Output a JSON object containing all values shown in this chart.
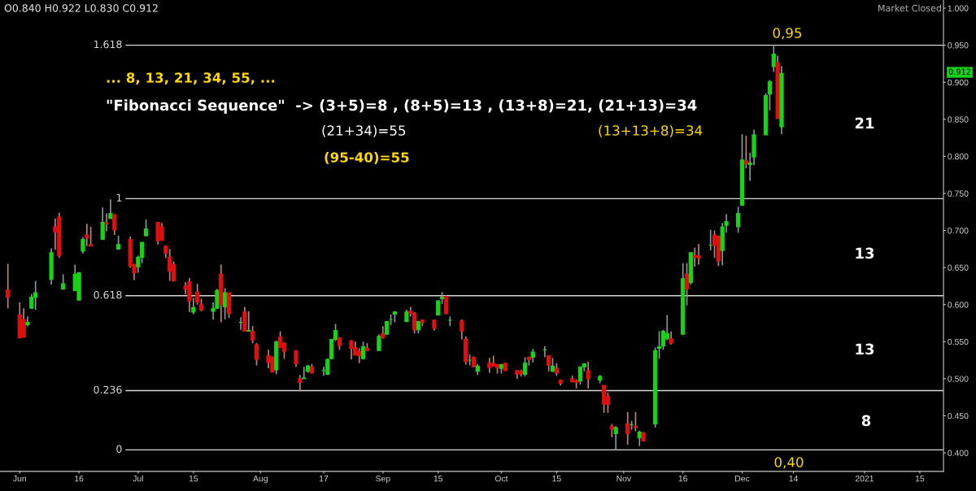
{
  "chart_data": {
    "type": "candlestick",
    "x": [
      "2020-05-29",
      "2020-06-01",
      "2020-06-02",
      "2020-06-03",
      "2020-06-04",
      "2020-06-05",
      "2020-06-09",
      "2020-06-10",
      "2020-06-11",
      "2020-06-12",
      "2020-06-15",
      "2020-06-16",
      "2020-06-17",
      "2020-06-18",
      "2020-06-19",
      "2020-06-22",
      "2020-06-23",
      "2020-06-24",
      "2020-06-25",
      "2020-06-26",
      "2020-06-29",
      "2020-06-30",
      "2020-07-01",
      "2020-07-02",
      "2020-07-03",
      "2020-07-06",
      "2020-07-07",
      "2020-07-08",
      "2020-07-09",
      "2020-07-10",
      "2020-07-13",
      "2020-07-14",
      "2020-07-15",
      "2020-07-16",
      "2020-07-17",
      "2020-07-20",
      "2020-07-21",
      "2020-07-22",
      "2020-07-23",
      "2020-07-24",
      "2020-07-27",
      "2020-07-28",
      "2020-07-29",
      "2020-07-30",
      "2020-07-31",
      "2020-08-03",
      "2020-08-04",
      "2020-08-05",
      "2020-08-06",
      "2020-08-07",
      "2020-08-10",
      "2020-08-11",
      "2020-08-12",
      "2020-08-13",
      "2020-08-14",
      "2020-08-17",
      "2020-08-18",
      "2020-08-19",
      "2020-08-20",
      "2020-08-21",
      "2020-08-24",
      "2020-08-25",
      "2020-08-26",
      "2020-08-27",
      "2020-08-28",
      "2020-08-31",
      "2020-09-01",
      "2020-09-02",
      "2020-09-03",
      "2020-09-04",
      "2020-09-07",
      "2020-09-08",
      "2020-09-09",
      "2020-09-10",
      "2020-09-11",
      "2020-09-14",
      "2020-09-15",
      "2020-09-16",
      "2020-09-17",
      "2020-09-18",
      "2020-09-21",
      "2020-09-22",
      "2020-09-23",
      "2020-09-24",
      "2020-09-25",
      "2020-09-28",
      "2020-09-29",
      "2020-09-30",
      "2020-10-01",
      "2020-10-02",
      "2020-10-05",
      "2020-10-06",
      "2020-10-07",
      "2020-10-08",
      "2020-10-09",
      "2020-10-12",
      "2020-10-13",
      "2020-10-14",
      "2020-10-15",
      "2020-10-16",
      "2020-10-19",
      "2020-10-20",
      "2020-10-21",
      "2020-10-22",
      "2020-10-23",
      "2020-10-26",
      "2020-10-27",
      "2020-10-28",
      "2020-10-29",
      "2020-10-30",
      "2020-11-02",
      "2020-11-03",
      "2020-11-04",
      "2020-11-05",
      "2020-11-06",
      "2020-11-09",
      "2020-11-10",
      "2020-11-11",
      "2020-11-12",
      "2020-11-13",
      "2020-11-16",
      "2020-11-17",
      "2020-11-18",
      "2020-11-19",
      "2020-11-20",
      "2020-11-23",
      "2020-11-24",
      "2020-11-25",
      "2020-11-26",
      "2020-11-27",
      "2020-11-30",
      "2020-12-01",
      "2020-12-02",
      "2020-12-03",
      "2020-12-04",
      "2020-12-07",
      "2020-12-08",
      "2020-12-09",
      "2020-12-10",
      "2020-12-11"
    ],
    "ohlc": [
      [
        0.62,
        0.655,
        0.595,
        0.61
      ],
      [
        0.586,
        0.603,
        0.555,
        0.555
      ],
      [
        0.58,
        0.595,
        0.556,
        0.556
      ],
      [
        0.573,
        0.584,
        0.571,
        0.576
      ],
      [
        0.595,
        0.614,
        0.595,
        0.61
      ],
      [
        0.61,
        0.632,
        0.593,
        0.616
      ],
      [
        0.634,
        0.676,
        0.627,
        0.67
      ],
      [
        0.705,
        0.716,
        0.674,
        0.698
      ],
      [
        0.718,
        0.724,
        0.663,
        0.666
      ],
      [
        0.621,
        0.641,
        0.62,
        0.628
      ],
      [
        0.619,
        0.654,
        0.619,
        0.641
      ],
      [
        0.606,
        0.643,
        0.606,
        0.643
      ],
      [
        0.672,
        0.691,
        0.669,
        0.688
      ],
      [
        0.694,
        0.709,
        0.679,
        0.69
      ],
      [
        0.681,
        0.705,
        0.679,
        0.679
      ],
      [
        0.688,
        0.731,
        0.688,
        0.711
      ],
      [
        0.71,
        0.723,
        0.699,
        0.709
      ],
      [
        0.716,
        0.742,
        0.716,
        0.723
      ],
      [
        0.721,
        0.722,
        0.694,
        0.701
      ],
      [
        0.675,
        0.693,
        0.675,
        0.681
      ],
      [
        0.688,
        0.692,
        0.65,
        0.652
      ],
      [
        0.654,
        0.655,
        0.633,
        0.643
      ],
      [
        0.651,
        0.666,
        0.643,
        0.664
      ],
      [
        0.664,
        0.684,
        0.656,
        0.684
      ],
      [
        0.693,
        0.715,
        0.692,
        0.702
      ],
      [
        0.711,
        0.711,
        0.681,
        0.686
      ],
      [
        0.705,
        0.71,
        0.687,
        0.687
      ],
      [
        0.679,
        0.68,
        0.663,
        0.669
      ],
      [
        0.664,
        0.675,
        0.632,
        0.645
      ],
      [
        0.654,
        0.658,
        0.631,
        0.632
      ],
      [
        0.625,
        0.63,
        0.614,
        0.621
      ],
      [
        0.631,
        0.636,
        0.59,
        0.605
      ],
      [
        0.59,
        0.609,
        0.587,
        0.596
      ],
      [
        0.617,
        0.628,
        0.6,
        0.603
      ],
      [
        0.6,
        0.608,
        0.591,
        0.593
      ],
      [
        0.591,
        0.603,
        0.58,
        0.595
      ],
      [
        0.595,
        0.621,
        0.595,
        0.619
      ],
      [
        0.641,
        0.654,
        0.576,
        0.6
      ],
      [
        0.597,
        0.622,
        0.58,
        0.616
      ],
      [
        0.616,
        0.616,
        0.582,
        0.588
      ],
      [
        0.576,
        0.583,
        0.566,
        0.576
      ],
      [
        0.59,
        0.597,
        0.564,
        0.564
      ],
      [
        0.564,
        0.591,
        0.564,
        0.565
      ],
      [
        0.564,
        0.571,
        0.548,
        0.552
      ],
      [
        0.546,
        0.548,
        0.518,
        0.526
      ],
      [
        0.531,
        0.539,
        0.514,
        0.522
      ],
      [
        0.529,
        0.53,
        0.509,
        0.509
      ],
      [
        0.512,
        0.551,
        0.506,
        0.55
      ],
      [
        0.556,
        0.564,
        0.542,
        0.542
      ],
      [
        0.548,
        0.549,
        0.527,
        0.537
      ],
      [
        0.538,
        0.538,
        0.516,
        0.52
      ],
      [
        0.5,
        0.505,
        0.483,
        0.495
      ],
      [
        0.5,
        0.516,
        0.5,
        0.501
      ],
      [
        0.51,
        0.519,
        0.508,
        0.517
      ],
      [
        0.516,
        0.52,
        0.507,
        0.508
      ],
      [
        0.511,
        0.516,
        0.504,
        0.511
      ],
      [
        0.506,
        0.527,
        0.505,
        0.526
      ],
      [
        0.527,
        0.553,
        0.526,
        0.553
      ],
      [
        0.553,
        0.574,
        0.551,
        0.565
      ],
      [
        0.555,
        0.556,
        0.539,
        0.545
      ],
      [
        0.551,
        0.552,
        0.526,
        0.541
      ],
      [
        0.542,
        0.55,
        0.532,
        0.532
      ],
      [
        0.537,
        0.541,
        0.521,
        0.531
      ],
      [
        0.527,
        0.55,
        0.526,
        0.543
      ],
      [
        0.541,
        0.548,
        0.537,
        0.538
      ],
      [
        0.538,
        0.56,
        0.538,
        0.557
      ],
      [
        0.561,
        0.571,
        0.554,
        0.555
      ],
      [
        0.56,
        0.577,
        0.56,
        0.577
      ],
      [
        0.58,
        0.587,
        0.572,
        0.58
      ],
      [
        0.587,
        0.591,
        0.576,
        0.59
      ],
      [
        0.577,
        0.593,
        0.577,
        0.59
      ],
      [
        0.591,
        0.597,
        0.584,
        0.588
      ],
      [
        0.588,
        0.59,
        0.561,
        0.566
      ],
      [
        0.566,
        0.578,
        0.561,
        0.577
      ],
      [
        0.579,
        0.58,
        0.571,
        0.576
      ],
      [
        0.579,
        0.58,
        0.565,
        0.568
      ],
      [
        0.586,
        0.606,
        0.586,
        0.605
      ],
      [
        0.608,
        0.617,
        0.601,
        0.61
      ],
      [
        0.611,
        0.613,
        0.587,
        0.588
      ],
      [
        0.579,
        0.584,
        0.571,
        0.579
      ],
      [
        0.578,
        0.58,
        0.553,
        0.564
      ],
      [
        0.553,
        0.557,
        0.519,
        0.523
      ],
      [
        0.525,
        0.533,
        0.518,
        0.525
      ],
      [
        0.529,
        0.53,
        0.516,
        0.516
      ],
      [
        0.51,
        0.52,
        0.505,
        0.517
      ],
      [
        0.521,
        0.528,
        0.508,
        0.515
      ],
      [
        0.521,
        0.531,
        0.517,
        0.517
      ],
      [
        0.519,
        0.52,
        0.507,
        0.515
      ],
      [
        0.514,
        0.52,
        0.507,
        0.519
      ],
      [
        0.521,
        0.521,
        0.511,
        0.511
      ],
      [
        0.511,
        0.512,
        0.5,
        0.506
      ],
      [
        0.51,
        0.512,
        0.503,
        0.507
      ],
      [
        0.506,
        0.529,
        0.503,
        0.521
      ],
      [
        0.529,
        0.53,
        0.518,
        0.526
      ],
      [
        0.529,
        0.54,
        0.522,
        0.536
      ],
      [
        0.539,
        0.544,
        0.529,
        0.539
      ],
      [
        0.531,
        0.531,
        0.51,
        0.518
      ],
      [
        0.51,
        0.528,
        0.509,
        0.517
      ],
      [
        0.514,
        0.521,
        0.504,
        0.508
      ],
      [
        0.498,
        0.499,
        0.491,
        0.494
      ],
      [
        0.5,
        0.504,
        0.495,
        0.496
      ],
      [
        0.497,
        0.499,
        0.487,
        0.495
      ],
      [
        0.497,
        0.516,
        0.492,
        0.516
      ],
      [
        0.516,
        0.52,
        0.51,
        0.52
      ],
      [
        0.511,
        0.523,
        0.487,
        0.5
      ],
      [
        0.498,
        0.505,
        0.494,
        0.503
      ],
      [
        0.491,
        0.491,
        0.454,
        0.466
      ],
      [
        0.476,
        0.481,
        0.454,
        0.465
      ],
      [
        0.436,
        0.439,
        0.421,
        0.432
      ],
      [
        0.426,
        0.436,
        0.404,
        0.434
      ],
      [
        0.439,
        0.455,
        0.411,
        0.426
      ],
      [
        0.438,
        0.443,
        0.431,
        0.438
      ],
      [
        0.436,
        0.455,
        0.429,
        0.434
      ],
      [
        0.42,
        0.43,
        0.409,
        0.428
      ],
      [
        0.427,
        0.428,
        0.415,
        0.416
      ],
      [
        0.439,
        0.542,
        0.434,
        0.538
      ],
      [
        0.541,
        0.564,
        0.527,
        0.543
      ],
      [
        0.544,
        0.566,
        0.539,
        0.564
      ],
      [
        0.554,
        0.586,
        0.552,
        0.561
      ],
      [
        0.554,
        0.564,
        0.546,
        0.548
      ],
      [
        0.56,
        0.656,
        0.56,
        0.635
      ],
      [
        0.641,
        0.656,
        0.599,
        0.621
      ],
      [
        0.63,
        0.67,
        0.627,
        0.67
      ],
      [
        0.666,
        0.677,
        0.651,
        0.664
      ],
      [
        0.666,
        0.682,
        0.654,
        0.663
      ],
      [
        0.68,
        0.701,
        0.673,
        0.68
      ],
      [
        0.694,
        0.7,
        0.663,
        0.68
      ],
      [
        0.692,
        0.693,
        0.652,
        0.659
      ],
      [
        0.673,
        0.71,
        0.653,
        0.705
      ],
      [
        0.707,
        0.722,
        0.697,
        0.712
      ],
      [
        0.705,
        0.732,
        0.697,
        0.723
      ],
      [
        0.734,
        0.83,
        0.734,
        0.795
      ],
      [
        0.794,
        0.828,
        0.784,
        0.79
      ],
      [
        0.789,
        0.805,
        0.767,
        0.791
      ],
      [
        0.799,
        0.836,
        0.788,
        0.829
      ],
      [
        0.829,
        0.885,
        0.829,
        0.882
      ],
      [
        0.884,
        0.903,
        0.862,
        0.901
      ],
      [
        0.921,
        0.951,
        0.914,
        0.938
      ],
      [
        0.926,
        0.936,
        0.851,
        0.851
      ],
      [
        0.84,
        0.922,
        0.83,
        0.912
      ]
    ],
    "xlim": [
      "2020-05-27",
      "2021-01-21"
    ],
    "xticks": [
      {
        "value": "2020-06-01",
        "label": "Jun"
      },
      {
        "value": "2020-06-16",
        "label": "16"
      },
      {
        "value": "2020-07-01",
        "label": "Jul"
      },
      {
        "value": "2020-07-15",
        "label": "15"
      },
      {
        "value": "2020-08-01",
        "label": "Aug"
      },
      {
        "value": "2020-08-17",
        "label": "17"
      },
      {
        "value": "2020-09-01",
        "label": "Sep"
      },
      {
        "value": "2020-09-15",
        "label": "15"
      },
      {
        "value": "2020-10-01",
        "label": "Oct"
      },
      {
        "value": "2020-10-15",
        "label": "15"
      },
      {
        "value": "2020-11-01",
        "label": "Nov"
      },
      {
        "value": "2020-11-16",
        "label": "16"
      },
      {
        "value": "2020-12-01",
        "label": "Dec"
      },
      {
        "value": "2020-12-14",
        "label": "14"
      },
      {
        "value": "2021-01-01",
        "label": "2021"
      },
      {
        "value": "2021-01-15",
        "label": "15"
      }
    ],
    "ylim": [
      0.375,
      1.011
    ],
    "yticks": [
      {
        "value": 0.4,
        "label": "0.400"
      },
      {
        "value": 0.45,
        "label": "0.450"
      },
      {
        "value": 0.5,
        "label": "0.500"
      },
      {
        "value": 0.55,
        "label": "0.550"
      },
      {
        "value": 0.6,
        "label": "0.600"
      },
      {
        "value": 0.65,
        "label": "0.650"
      },
      {
        "value": 0.7,
        "label": "0.700"
      },
      {
        "value": 0.75,
        "label": "0.750"
      },
      {
        "value": 0.8,
        "label": "0.800"
      },
      {
        "value": 0.85,
        "label": "0.850"
      },
      {
        "value": 0.9,
        "label": "0.900"
      },
      {
        "value": 0.95,
        "label": "0.950"
      },
      {
        "value": 1.0,
        "label": "1.000"
      }
    ],
    "ref_lines": [
      {
        "axis": "y",
        "value": 0.95,
        "color": "#d8d8d8"
      },
      {
        "axis": "y",
        "value": 0.743,
        "color": "#d8d8d8"
      },
      {
        "axis": "y",
        "value": 0.612,
        "color": "#d8d8d8"
      },
      {
        "axis": "y",
        "value": 0.484,
        "color": "#d8d8d8"
      },
      {
        "axis": "y",
        "value": 0.404,
        "color": "#d8d8d8"
      }
    ],
    "annotations": [
      "O0.840 H0.922 L0.830 C0.912",
      "Market Closed",
      "0.912",
      "... 8, 13, 21, 34, 55, ...",
      "\"Fibonacci Sequence\"  -> (3+5)=8 , (8+5)=13 , (13+8)=21, (21+13)=34",
      "(21+34)=55",
      "(13+13+8)=34",
      "(95-40)=55",
      "0,95",
      "0,40",
      "21",
      "13",
      "13",
      "8",
      "1.618",
      "1",
      "0.618",
      "0.236",
      "0"
    ],
    "grid": false,
    "legend": false
  }
}
